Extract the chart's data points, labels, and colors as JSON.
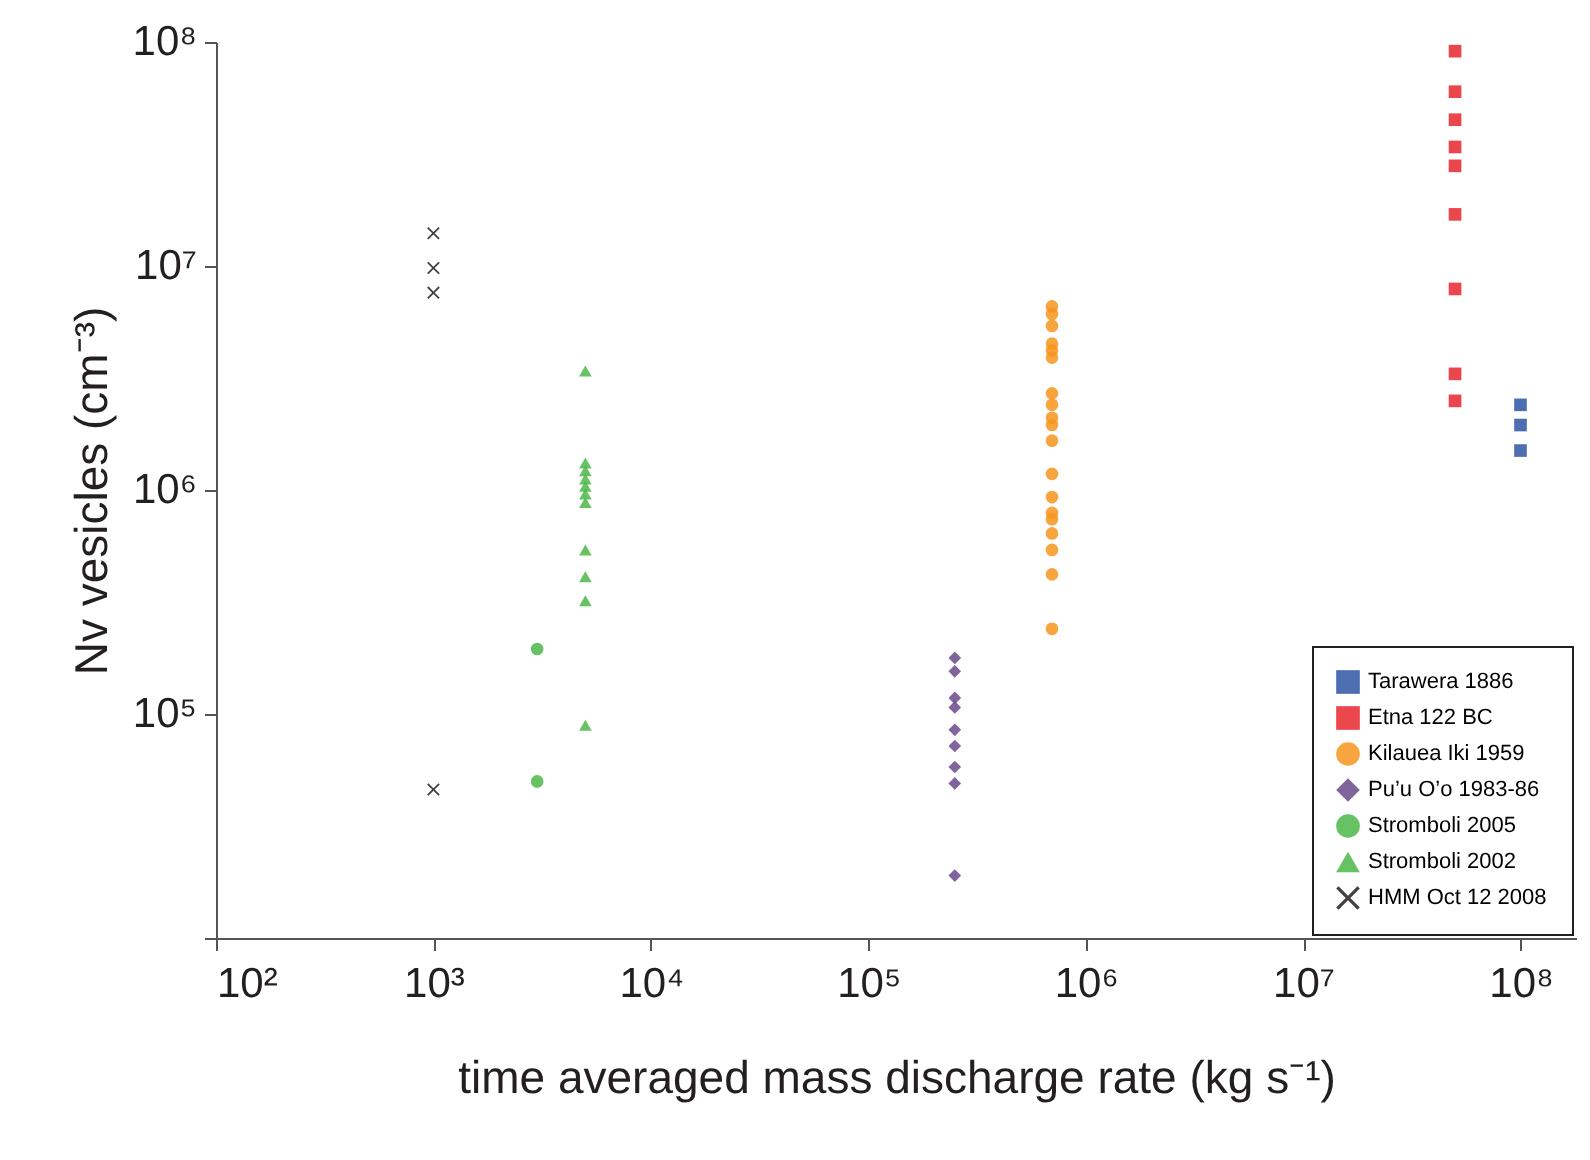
{
  "chart_data": {
    "type": "scatter",
    "xlabel": "time averaged mass discharge rate (kg s⁻¹)",
    "ylabel": "Nv vesicles (cm⁻³)",
    "log": "xy",
    "grid": false,
    "legend": "bottom right",
    "xlim": [
      100,
      180000000
    ],
    "xticks": [
      {
        "value": 100,
        "label": "10²"
      },
      {
        "value": 1000,
        "label": "10³"
      },
      {
        "value": 10000,
        "label": "10⁴"
      },
      {
        "value": 100000,
        "label": "10⁵"
      },
      {
        "value": 1000000,
        "label": "10⁶"
      },
      {
        "value": 10000000,
        "label": "10⁷"
      },
      {
        "value": 100000000,
        "label": "10⁸"
      }
    ],
    "ylim": [
      10000,
      100000000
    ],
    "yticks": [
      {
        "value": 10000,
        "label": null
      },
      {
        "value": 100000,
        "label": "10⁵"
      },
      {
        "value": 1000000,
        "label": "10⁶"
      },
      {
        "value": 10000000,
        "label": "10⁷"
      },
      {
        "value": 100000000,
        "label": "10⁸"
      }
    ],
    "series": [
      {
        "name": "Tarawera 1886",
        "color": "#2f55a4",
        "marker": "square",
        "x": [
          100000000,
          100000000,
          100000000
        ],
        "values": [
          2400000,
          1950000,
          1500000
        ]
      },
      {
        "name": "Etna 122 BC",
        "color": "#e8262b",
        "marker": "square",
        "x": [
          50000000,
          50000000,
          50000000,
          50000000,
          50000000,
          50000000,
          50000000,
          50000000,
          50000000
        ],
        "values": [
          91000000,
          60000000,
          45000000,
          34000000,
          28000000,
          17000000,
          7900000,
          3300000,
          2500000
        ]
      },
      {
        "name": "Kilauea Iki 1959",
        "color": "#f7941d",
        "marker": "circle",
        "x": [
          700000,
          700000,
          700000,
          700000,
          700000,
          700000,
          700000,
          700000,
          700000,
          700000,
          700000,
          700000,
          700000,
          700000,
          700000,
          700000,
          700000,
          700000,
          700000
        ],
        "values": [
          6600000,
          6100000,
          5400000,
          4500000,
          4200000,
          3900000,
          2700000,
          2400000,
          2100000,
          1950000,
          1660000,
          1180000,
          930000,
          790000,
          740000,
          640000,
          540000,
          420000,
          240000
        ]
      },
      {
        "name": "Pu’u O’o 1983-86",
        "color": "#6a4a8c",
        "marker": "diamond",
        "x": [
          250000,
          250000,
          250000,
          250000,
          250000,
          250000,
          250000,
          250000,
          250000
        ],
        "values": [
          178000,
          155000,
          118000,
          107000,
          85000,
          72000,
          58000,
          49000,
          19000
        ]
      },
      {
        "name": "Stromboli 2005",
        "color": "#4cb748",
        "marker": "circle",
        "x": [
          3000,
          3000
        ],
        "values": [
          195000,
          50000
        ]
      },
      {
        "name": "Stromboli 2002",
        "color": "#4cb748",
        "marker": "triangle",
        "x": [
          5000,
          5000,
          5000,
          5000,
          5000,
          5000,
          5000,
          5000,
          5000,
          5000,
          5000
        ],
        "values": [
          3400000,
          1320000,
          1220000,
          1120000,
          1040000,
          960000,
          880000,
          540000,
          410000,
          320000,
          89000
        ]
      },
      {
        "name": "HMM Oct 12 2008",
        "color": "#231f20",
        "marker": "cross",
        "x": [
          1000,
          1000,
          1000,
          1000
        ],
        "values": [
          14000000,
          9800000,
          7600000,
          46000
        ]
      }
    ]
  }
}
